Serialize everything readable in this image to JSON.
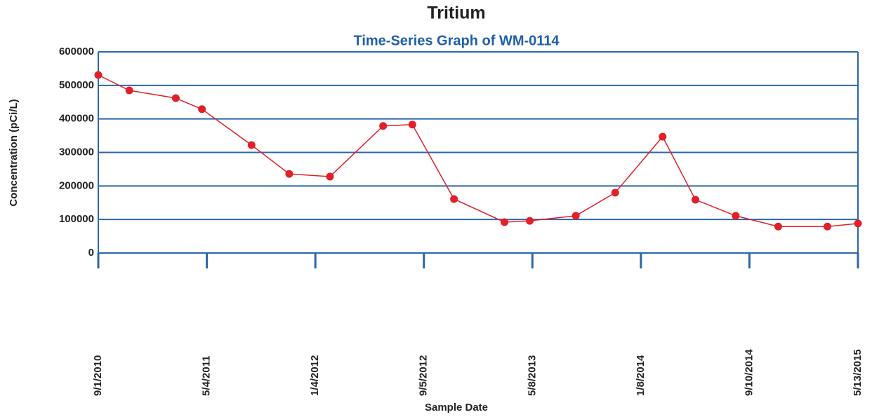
{
  "chart_data": {
    "type": "line",
    "title": "Tritium",
    "subtitle": "Time-Series Graph of WM-0114",
    "x_label": "Sample Date",
    "y_label": "Concentration (pCi/L)",
    "x": [
      "2010-09-01",
      "2010-11-10",
      "2011-02-23",
      "2011-04-23",
      "2011-08-13",
      "2011-11-06",
      "2012-02-06",
      "2012-06-05",
      "2012-08-10",
      "2012-11-12",
      "2013-03-06",
      "2013-05-02",
      "2013-08-14",
      "2013-11-11",
      "2014-02-26",
      "2014-05-11",
      "2014-08-10",
      "2014-11-14",
      "2015-03-05",
      "2015-05-13"
    ],
    "series": [
      {
        "name": "WM-0114",
        "color": "#e0202a",
        "values": [
          531000,
          485000,
          462000,
          429000,
          322000,
          236000,
          228000,
          379000,
          383000,
          161000,
          92000,
          96000,
          111000,
          180000,
          347000,
          159000,
          111000,
          79000,
          79000,
          88000
        ]
      }
    ],
    "xlim": [
      "2010-09-01",
      "2015-05-13"
    ],
    "xticks": [
      {
        "value": "2010-09-01",
        "label": "9/1/2010"
      },
      {
        "value": "2011-05-04",
        "label": "5/4/2011"
      },
      {
        "value": "2012-01-04",
        "label": "1/4/2012"
      },
      {
        "value": "2012-09-05",
        "label": "9/5/2012"
      },
      {
        "value": "2013-05-08",
        "label": "5/8/2013"
      },
      {
        "value": "2014-01-08",
        "label": "1/8/2014"
      },
      {
        "value": "2014-09-10",
        "label": "9/10/2014"
      },
      {
        "value": "2015-05-13",
        "label": "5/13/2015"
      }
    ],
    "ylim": [
      0,
      600000
    ],
    "yticks": [
      0,
      100000,
      200000,
      300000,
      400000,
      500000,
      600000
    ],
    "grid": true,
    "grid_color": "#2a68a8"
  }
}
